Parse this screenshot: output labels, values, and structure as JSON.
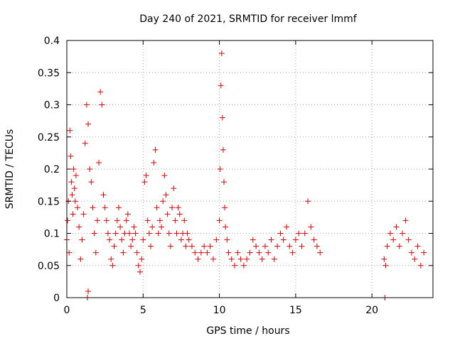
{
  "chart_data": {
    "type": "scatter",
    "title": "Day 240 of 2021, SRMTID for receiver lmmf",
    "xlabel": "GPS time / hours",
    "ylabel": "SRMTID / TECUs",
    "xlim": [
      0,
      24
    ],
    "ylim": [
      0,
      0.4
    ],
    "xticks": [
      0,
      5,
      10,
      15,
      20
    ],
    "xtick_labels": [
      "0",
      "5",
      "10",
      "15",
      "20"
    ],
    "yticks": [
      0,
      0.05,
      0.1,
      0.15,
      0.2,
      0.25,
      0.3,
      0.35,
      0.4
    ],
    "ytick_labels": [
      "0",
      "0.05",
      "0.1",
      "0.15",
      "0.2",
      "0.25",
      "0.3",
      "0.35",
      "0.4"
    ],
    "grid": true,
    "marker": "+",
    "series_color": "#e00000",
    "series": [
      {
        "name": "SRMTID",
        "points": [
          [
            0.0,
            0.09
          ],
          [
            0.05,
            0.12
          ],
          [
            0.1,
            0.15
          ],
          [
            0.15,
            0.07
          ],
          [
            0.2,
            0.26
          ],
          [
            0.25,
            0.22
          ],
          [
            0.3,
            0.18
          ],
          [
            0.35,
            0.16
          ],
          [
            0.4,
            0.13
          ],
          [
            0.45,
            0.2
          ],
          [
            0.5,
            0.17
          ],
          [
            0.55,
            0.15
          ],
          [
            0.6,
            0.19
          ],
          [
            0.7,
            0.14
          ],
          [
            0.8,
            0.11
          ],
          [
            0.9,
            0.06
          ],
          [
            1.0,
            0.09
          ],
          [
            1.1,
            0.13
          ],
          [
            1.2,
            0.24
          ],
          [
            1.3,
            0.3
          ],
          [
            1.4,
            0.27
          ],
          [
            1.5,
            0.2
          ],
          [
            1.6,
            0.18
          ],
          [
            1.7,
            0.14
          ],
          [
            1.8,
            0.1
          ],
          [
            1.9,
            0.07
          ],
          [
            2.0,
            0.12
          ],
          [
            2.1,
            0.21
          ],
          [
            2.2,
            0.32
          ],
          [
            2.3,
            0.3
          ],
          [
            2.4,
            0.16
          ],
          [
            2.5,
            0.14
          ],
          [
            2.6,
            0.12
          ],
          [
            2.7,
            0.1
          ],
          [
            2.8,
            0.09
          ],
          [
            2.9,
            0.06
          ],
          [
            3.0,
            0.05
          ],
          [
            3.1,
            0.08
          ],
          [
            3.2,
            0.1
          ],
          [
            3.3,
            0.12
          ],
          [
            3.4,
            0.14
          ],
          [
            3.5,
            0.11
          ],
          [
            3.6,
            0.09
          ],
          [
            3.7,
            0.07
          ],
          [
            3.8,
            0.1
          ],
          [
            3.9,
            0.12
          ],
          [
            4.0,
            0.13
          ],
          [
            4.1,
            0.1
          ],
          [
            4.2,
            0.08
          ],
          [
            4.3,
            0.09
          ],
          [
            4.4,
            0.11
          ],
          [
            4.5,
            0.1
          ],
          [
            4.6,
            0.07
          ],
          [
            4.7,
            0.05
          ],
          [
            4.8,
            0.04
          ],
          [
            4.9,
            0.06
          ],
          [
            5.0,
            0.09
          ],
          [
            5.1,
            0.18
          ],
          [
            5.2,
            0.19
          ],
          [
            5.3,
            0.12
          ],
          [
            5.4,
            0.1
          ],
          [
            5.5,
            0.08
          ],
          [
            5.6,
            0.11
          ],
          [
            5.7,
            0.21
          ],
          [
            5.8,
            0.23
          ],
          [
            5.9,
            0.14
          ],
          [
            6.0,
            0.1
          ],
          [
            6.1,
            0.12
          ],
          [
            6.2,
            0.11
          ],
          [
            6.3,
            0.15
          ],
          [
            6.4,
            0.19
          ],
          [
            6.5,
            0.16
          ],
          [
            6.6,
            0.13
          ],
          [
            6.7,
            0.1
          ],
          [
            6.8,
            0.08
          ],
          [
            6.9,
            0.14
          ],
          [
            7.0,
            0.17
          ],
          [
            7.1,
            0.12
          ],
          [
            7.2,
            0.1
          ],
          [
            7.3,
            0.14
          ],
          [
            7.4,
            0.13
          ],
          [
            7.5,
            0.09
          ],
          [
            7.6,
            0.1
          ],
          [
            7.7,
            0.12
          ],
          [
            7.8,
            0.08
          ],
          [
            7.9,
            0.1
          ],
          [
            8.0,
            0.09
          ],
          [
            8.2,
            0.08
          ],
          [
            8.4,
            0.07
          ],
          [
            8.6,
            0.06
          ],
          [
            8.8,
            0.07
          ],
          [
            9.0,
            0.08
          ],
          [
            9.2,
            0.07
          ],
          [
            9.4,
            0.08
          ],
          [
            9.6,
            0.06
          ],
          [
            9.8,
            0.09
          ],
          [
            10.0,
            0.12
          ],
          [
            10.05,
            0.2
          ],
          [
            10.1,
            0.33
          ],
          [
            10.15,
            0.38
          ],
          [
            10.2,
            0.28
          ],
          [
            10.25,
            0.23
          ],
          [
            10.3,
            0.18
          ],
          [
            10.35,
            0.14
          ],
          [
            10.4,
            0.11
          ],
          [
            10.5,
            0.09
          ],
          [
            10.6,
            0.07
          ],
          [
            10.8,
            0.06
          ],
          [
            11.0,
            0.05
          ],
          [
            11.2,
            0.07
          ],
          [
            11.4,
            0.06
          ],
          [
            11.6,
            0.05
          ],
          [
            11.8,
            0.06
          ],
          [
            12.0,
            0.07
          ],
          [
            12.2,
            0.09
          ],
          [
            12.4,
            0.08
          ],
          [
            12.6,
            0.07
          ],
          [
            12.8,
            0.06
          ],
          [
            13.0,
            0.08
          ],
          [
            13.2,
            0.07
          ],
          [
            13.4,
            0.09
          ],
          [
            13.6,
            0.06
          ],
          [
            13.8,
            0.08
          ],
          [
            14.0,
            0.1
          ],
          [
            14.2,
            0.09
          ],
          [
            14.4,
            0.11
          ],
          [
            14.6,
            0.08
          ],
          [
            14.8,
            0.07
          ],
          [
            15.0,
            0.09
          ],
          [
            15.2,
            0.1
          ],
          [
            15.4,
            0.08
          ],
          [
            15.6,
            0.1
          ],
          [
            15.8,
            0.15
          ],
          [
            16.0,
            0.11
          ],
          [
            16.2,
            0.09
          ],
          [
            16.4,
            0.08
          ],
          [
            16.6,
            0.07
          ],
          [
            20.8,
            0.06
          ],
          [
            20.9,
            0.05
          ],
          [
            21.0,
            0.08
          ],
          [
            21.2,
            0.1
          ],
          [
            21.4,
            0.09
          ],
          [
            21.6,
            0.11
          ],
          [
            21.8,
            0.08
          ],
          [
            22.0,
            0.1
          ],
          [
            22.2,
            0.12
          ],
          [
            22.4,
            0.09
          ],
          [
            22.6,
            0.07
          ],
          [
            22.8,
            0.06
          ],
          [
            23.0,
            0.08
          ],
          [
            23.2,
            0.05
          ],
          [
            23.4,
            0.07
          ],
          [
            1.35,
            0.0
          ],
          [
            1.4,
            0.01
          ],
          [
            20.85,
            0.0
          ]
        ]
      }
    ]
  }
}
